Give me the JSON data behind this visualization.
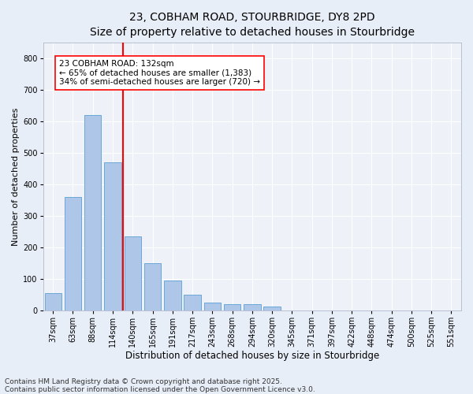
{
  "title_line1": "23, COBHAM ROAD, STOURBRIDGE, DY8 2PD",
  "title_line2": "Size of property relative to detached houses in Stourbridge",
  "xlabel": "Distribution of detached houses by size in Stourbridge",
  "ylabel": "Number of detached properties",
  "categories": [
    "37sqm",
    "63sqm",
    "88sqm",
    "114sqm",
    "140sqm",
    "165sqm",
    "191sqm",
    "217sqm",
    "243sqm",
    "268sqm",
    "294sqm",
    "320sqm",
    "345sqm",
    "371sqm",
    "397sqm",
    "422sqm",
    "448sqm",
    "474sqm",
    "500sqm",
    "525sqm",
    "551sqm"
  ],
  "values": [
    55,
    360,
    620,
    470,
    235,
    150,
    95,
    50,
    25,
    20,
    20,
    13,
    0,
    0,
    0,
    0,
    0,
    0,
    0,
    0,
    0
  ],
  "bar_color": "#aec6e8",
  "bar_edge_color": "#5a9fd4",
  "vline_x": 4.0,
  "vline_color": "red",
  "annotation_text": "23 COBHAM ROAD: 132sqm\n← 65% of detached houses are smaller (1,383)\n34% of semi-detached houses are larger (720) →",
  "annotation_box_color": "white",
  "annotation_box_edge_color": "red",
  "ylim": [
    0,
    850
  ],
  "yticks": [
    0,
    100,
    200,
    300,
    400,
    500,
    600,
    700,
    800
  ],
  "background_color": "#e8eef8",
  "plot_background": "#eef2f8",
  "footer_line1": "Contains HM Land Registry data © Crown copyright and database right 2025.",
  "footer_line2": "Contains public sector information licensed under the Open Government Licence v3.0.",
  "title_fontsize": 10,
  "subtitle_fontsize": 9,
  "xlabel_fontsize": 8.5,
  "ylabel_fontsize": 8,
  "tick_fontsize": 7,
  "annotation_fontsize": 7.5,
  "footer_fontsize": 6.5
}
